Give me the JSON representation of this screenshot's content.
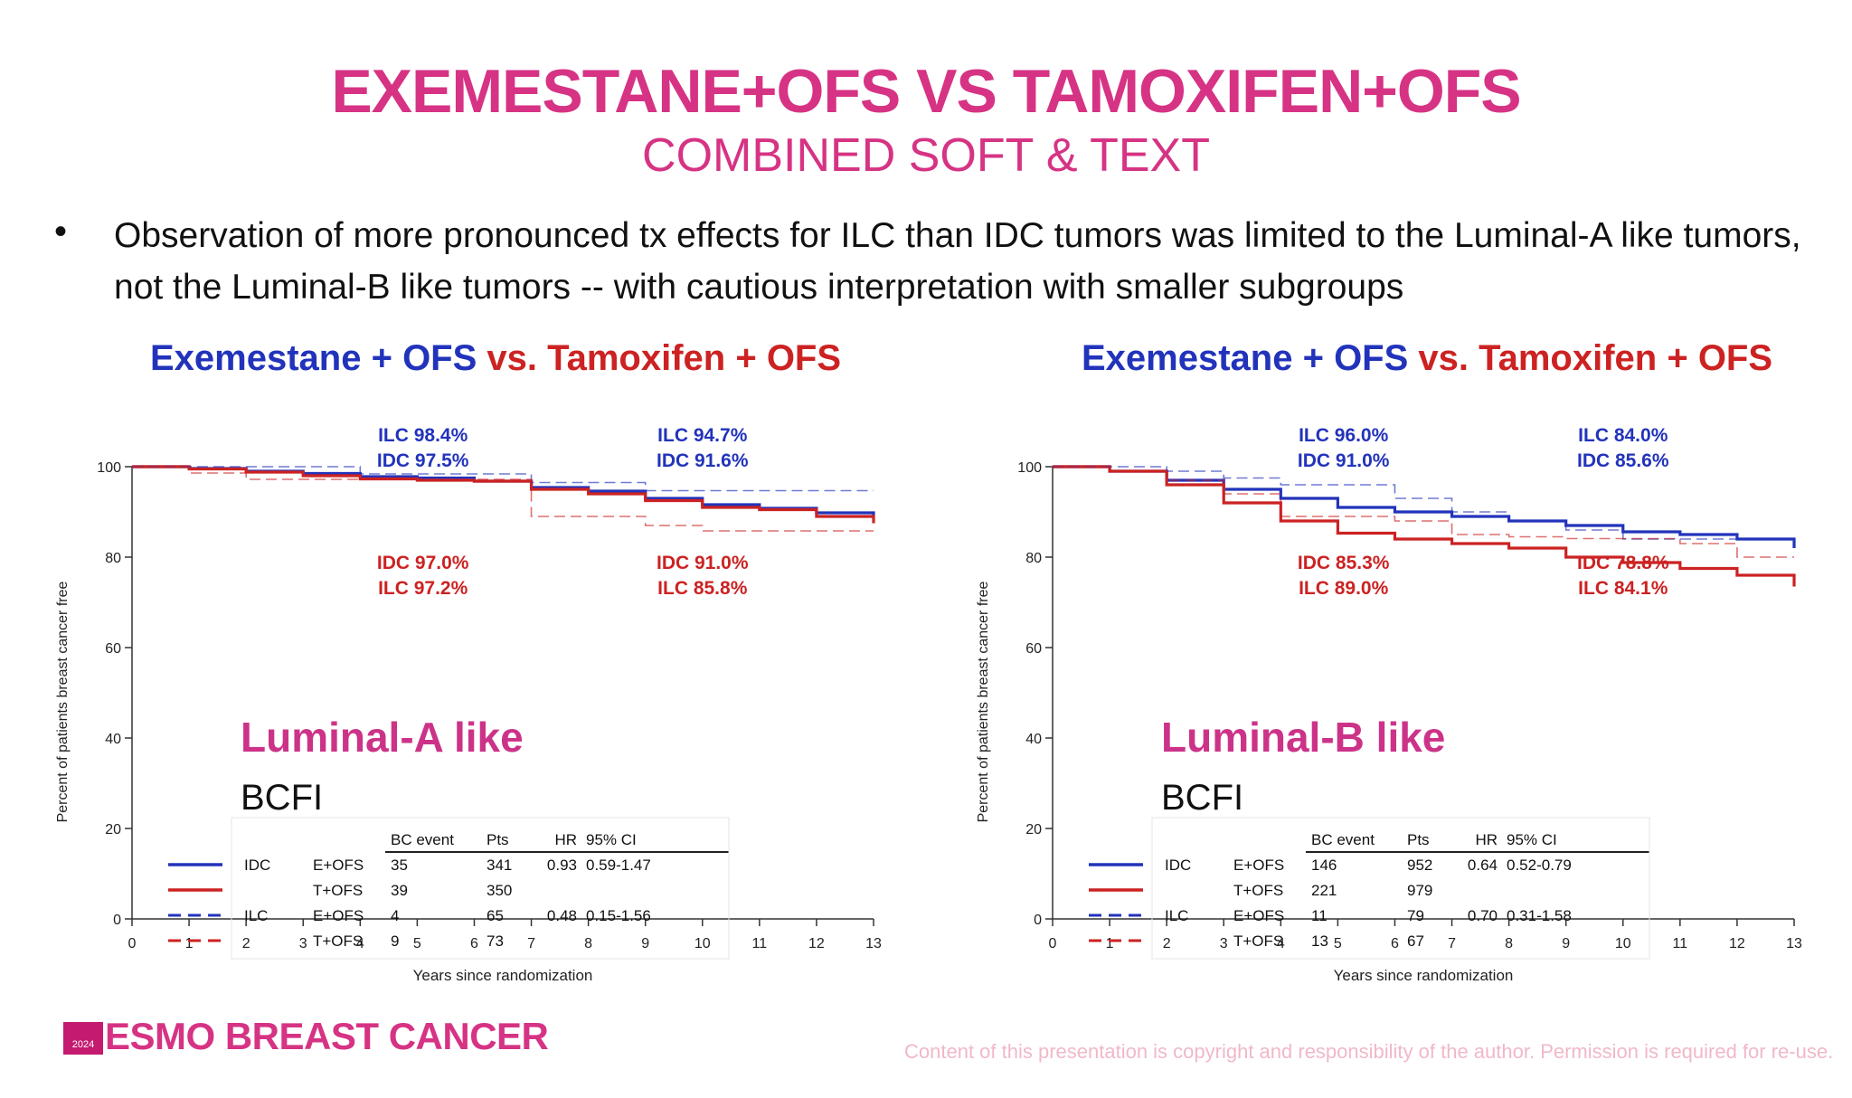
{
  "title": "EXEMESTANE+OFS VS TAMOXIFEN+OFS",
  "subtitle": "COMBINED SOFT & TEXT",
  "bullet": "Observation of more pronounced tx effects for ILC than IDC tumors was limited to the Luminal-A like tumors, not the Luminal-B like tumors -- with cautious interpretation with smaller subgroups",
  "footer": {
    "year": "2024",
    "name": "ESMO BREAST CANCER",
    "copyright": "Content of this presentation is copyright and responsibility of the author. Permission is required for re-use."
  },
  "colors": {
    "title": "#d63384",
    "exe": "#2233bb",
    "tam": "#cc2222"
  },
  "chart_data": [
    {
      "type": "line",
      "title_parts": {
        "exe": "Exemestane + OFS",
        "vs": "vs.",
        "tam": "Tamoxifen + OFS"
      },
      "subgroup": "Luminal-A like",
      "endpoint": "BCFI",
      "xlabel": "Years since randomization",
      "ylabel": "Percent of patients breast cancer free",
      "xlim": [
        0,
        13
      ],
      "ylim": [
        0,
        100
      ],
      "xticks": [
        "0",
        "1",
        "2",
        "3",
        "4",
        "5",
        "6",
        "7",
        "8",
        "9",
        "10",
        "11",
        "12",
        "13"
      ],
      "yticks": [
        "0",
        "20",
        "40",
        "60",
        "80",
        "100"
      ],
      "annotations": {
        "top_left": [
          "ILC 98.4%",
          "IDC 97.5%"
        ],
        "top_right": [
          "ILC 94.7%",
          "IDC 91.6%"
        ],
        "bottom_left": [
          "IDC 97.0%",
          "ILC 97.2%"
        ],
        "bottom_right": [
          "IDC 91.0%",
          "ILC 85.8%"
        ]
      },
      "series": [
        {
          "name": "IDC E+OFS",
          "style": "solid",
          "color": "#2233bb",
          "x": [
            0,
            1,
            2,
            3,
            4,
            5,
            6,
            7,
            8,
            9,
            10,
            11,
            12,
            13
          ],
          "y": [
            100,
            99.6,
            99.0,
            98.5,
            97.8,
            97.5,
            96.8,
            95.4,
            94.6,
            93.0,
            91.6,
            90.8,
            89.8,
            89.2
          ]
        },
        {
          "name": "IDC T+OFS",
          "style": "solid",
          "color": "#cc2222",
          "x": [
            0,
            1,
            2,
            3,
            4,
            5,
            6,
            7,
            8,
            9,
            10,
            11,
            12,
            13
          ],
          "y": [
            100,
            99.5,
            98.8,
            98.0,
            97.3,
            97.0,
            96.8,
            95.0,
            94.0,
            92.5,
            91.0,
            90.5,
            89.0,
            87.5
          ]
        },
        {
          "name": "ILC E+OFS",
          "style": "dashed",
          "color": "#2233bb",
          "x": [
            0,
            1,
            2,
            3,
            4,
            5,
            6,
            7,
            8,
            9,
            10,
            11,
            12,
            13
          ],
          "y": [
            100,
            100,
            100,
            100,
            98.4,
            98.4,
            98.4,
            96.5,
            96.5,
            94.7,
            94.7,
            94.7,
            94.7,
            94.7
          ]
        },
        {
          "name": "ILC T+OFS",
          "style": "dashed",
          "color": "#cc2222",
          "x": [
            0,
            1,
            2,
            3,
            4,
            5,
            6,
            7,
            8,
            9,
            10,
            11,
            12,
            13
          ],
          "y": [
            100,
            98.6,
            97.2,
            97.2,
            97.2,
            97.2,
            97.2,
            89.0,
            89.0,
            87.0,
            85.8,
            85.8,
            85.8,
            85.8
          ]
        }
      ],
      "table": {
        "headers": [
          "",
          "",
          "BC event",
          "Pts",
          "HR",
          "95% CI"
        ],
        "rows": [
          [
            "IDC",
            "E+OFS",
            "35",
            "341",
            "0.93",
            "0.59-1.47"
          ],
          [
            "",
            "T+OFS",
            "39",
            "350",
            "",
            ""
          ],
          [
            "ILC",
            "E+OFS",
            "4",
            "65",
            "0.48",
            "0.15-1.56"
          ],
          [
            "",
            "T+OFS",
            "9",
            "73",
            "",
            ""
          ]
        ]
      }
    },
    {
      "type": "line",
      "title_parts": {
        "exe": "Exemestane + OFS",
        "vs": "vs.",
        "tam": "Tamoxifen + OFS"
      },
      "subgroup": "Luminal-B like",
      "endpoint": "BCFI",
      "xlabel": "Years since randomization",
      "ylabel": "Percent of patients breast cancer free",
      "xlim": [
        0,
        13
      ],
      "ylim": [
        0,
        100
      ],
      "xticks": [
        "0",
        "1",
        "2",
        "3",
        "4",
        "5",
        "6",
        "7",
        "8",
        "9",
        "10",
        "11",
        "12",
        "13"
      ],
      "yticks": [
        "0",
        "20",
        "40",
        "60",
        "80",
        "100"
      ],
      "annotations": {
        "top_left": [
          "ILC 96.0%",
          "IDC 91.0%"
        ],
        "top_right": [
          "ILC 84.0%",
          "IDC 85.6%"
        ],
        "bottom_left": [
          "IDC 85.3%",
          "ILC 89.0%"
        ],
        "bottom_right": [
          "IDC 78.8%",
          "ILC 84.1%"
        ]
      },
      "series": [
        {
          "name": "IDC E+OFS",
          "style": "solid",
          "color": "#2233bb",
          "x": [
            0,
            1,
            2,
            3,
            4,
            5,
            6,
            7,
            8,
            9,
            10,
            11,
            12,
            13
          ],
          "y": [
            100,
            99.0,
            97.0,
            95.0,
            93.0,
            91.0,
            90.0,
            89.0,
            88.0,
            87.0,
            85.6,
            85.0,
            84.0,
            82.0
          ]
        },
        {
          "name": "IDC T+OFS",
          "style": "solid",
          "color": "#cc2222",
          "x": [
            0,
            1,
            2,
            3,
            4,
            5,
            6,
            7,
            8,
            9,
            10,
            11,
            12,
            13
          ],
          "y": [
            100,
            99.0,
            96.0,
            92.0,
            88.0,
            85.3,
            84.0,
            83.0,
            82.0,
            80.0,
            78.8,
            77.5,
            76.0,
            73.5
          ]
        },
        {
          "name": "ILC E+OFS",
          "style": "dashed",
          "color": "#2233bb",
          "x": [
            0,
            1,
            2,
            3,
            4,
            5,
            6,
            7,
            8,
            9,
            10,
            11,
            12,
            13
          ],
          "y": [
            100,
            100,
            99.0,
            97.5,
            96.0,
            96.0,
            93.0,
            90.0,
            88.0,
            86.0,
            84.0,
            84.0,
            84.0,
            84.0
          ]
        },
        {
          "name": "ILC T+OFS",
          "style": "dashed",
          "color": "#cc2222",
          "x": [
            0,
            1,
            2,
            3,
            4,
            5,
            6,
            7,
            8,
            9,
            10,
            11,
            12,
            13
          ],
          "y": [
            100,
            99.0,
            97.0,
            94.0,
            89.0,
            89.0,
            88.0,
            85.0,
            84.5,
            84.1,
            84.1,
            83.0,
            80.0,
            80.0
          ]
        }
      ],
      "table": {
        "headers": [
          "",
          "",
          "BC event",
          "Pts",
          "HR",
          "95% CI"
        ],
        "rows": [
          [
            "IDC",
            "E+OFS",
            "146",
            "952",
            "0.64",
            "0.52-0.79"
          ],
          [
            "",
            "T+OFS",
            "221",
            "979",
            "",
            ""
          ],
          [
            "ILC",
            "E+OFS",
            "11",
            "79",
            "0.70",
            "0.31-1.58"
          ],
          [
            "",
            "T+OFS",
            "13",
            "67",
            "",
            ""
          ]
        ]
      }
    }
  ]
}
